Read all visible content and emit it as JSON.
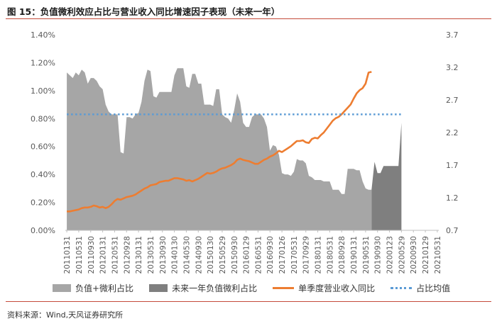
{
  "figure_title": "图 15：负值微利效应占比与营业收入同比增速因子表现（未来一年）",
  "source": "资料来源：Wind,天风证券研究所",
  "colors": {
    "area_past": "#a6a6a6",
    "area_future": "#7f7f7f",
    "line": "#ed7d31",
    "mean": "#5b9bd5",
    "axis": "#bfbfbf",
    "text": "#595959"
  },
  "chart_data": {
    "type": "area",
    "title": "",
    "y_left": {
      "min": 0,
      "max": 0.014,
      "ticks": [
        "0.00%",
        "0.20%",
        "0.40%",
        "0.60%",
        "0.80%",
        "1.00%",
        "1.20%",
        "1.40%"
      ]
    },
    "y_right": {
      "min": 0.7,
      "max": 3.7,
      "ticks": [
        "0.7",
        "1.2",
        "1.7",
        "2.2",
        "2.7",
        "3.2",
        "3.7"
      ]
    },
    "x_labels": [
      "20110131",
      "20110531",
      "20110930",
      "20120131",
      "20120531",
      "20120928",
      "20130131",
      "20130531",
      "20130930",
      "20140130",
      "20140530",
      "20140930",
      "20150130",
      "20150529",
      "20150930",
      "20160129",
      "20160531",
      "20160930",
      "20170126",
      "20170531",
      "20170929",
      "20180131",
      "20180531",
      "20180928",
      "20190131",
      "20190531",
      "20190930",
      "20200123",
      "20200529",
      "20200930",
      "20210129",
      "20210531"
    ],
    "months": 125,
    "future_start_index": 112,
    "mean_value": 0.0083,
    "legend": [
      "负值+微利占比",
      "未来一年负值微利占比",
      "单季度营业收入同比",
      "占比均值"
    ],
    "series": [
      {
        "name": "负值+微利占比",
        "axis": "left",
        "points": [
          [
            0,
            0.0113
          ],
          [
            1,
            0.0111
          ],
          [
            2,
            0.0109
          ],
          [
            3,
            0.0113
          ],
          [
            4,
            0.0111
          ],
          [
            5,
            0.0115
          ],
          [
            6,
            0.0113
          ],
          [
            7,
            0.0105
          ],
          [
            8,
            0.0109
          ],
          [
            9,
            0.0109
          ],
          [
            10,
            0.0107
          ],
          [
            11,
            0.0103
          ],
          [
            12,
            0.0101
          ],
          [
            13,
            0.009
          ],
          [
            14,
            0.0085
          ],
          [
            15,
            0.0083
          ],
          [
            16,
            0.0083
          ],
          [
            17,
            0.0083
          ],
          [
            18,
            0.0056
          ],
          [
            19,
            0.0055
          ],
          [
            20,
            0.0081
          ],
          [
            21,
            0.0081
          ],
          [
            22,
            0.008
          ],
          [
            23,
            0.0083
          ],
          [
            24,
            0.0084
          ],
          [
            25,
            0.0092
          ],
          [
            26,
            0.0107
          ],
          [
            27,
            0.0115
          ],
          [
            28,
            0.0114
          ],
          [
            29,
            0.0096
          ],
          [
            30,
            0.0095
          ],
          [
            31,
            0.0099
          ],
          [
            32,
            0.0099
          ],
          [
            33,
            0.0099
          ],
          [
            34,
            0.0099
          ],
          [
            35,
            0.0099
          ],
          [
            36,
            0.0111
          ],
          [
            37,
            0.0116
          ],
          [
            38,
            0.0116
          ],
          [
            39,
            0.0116
          ],
          [
            40,
            0.0103
          ],
          [
            41,
            0.0102
          ],
          [
            42,
            0.0112
          ],
          [
            43,
            0.0112
          ],
          [
            44,
            0.0105
          ],
          [
            45,
            0.0105
          ],
          [
            46,
            0.009
          ],
          [
            47,
            0.009
          ],
          [
            48,
            0.009
          ],
          [
            49,
            0.0089
          ],
          [
            50,
            0.0101
          ],
          [
            51,
            0.0101
          ],
          [
            52,
            0.0083
          ],
          [
            53,
            0.0081
          ],
          [
            54,
            0.008
          ],
          [
            55,
            0.0077
          ],
          [
            56,
            0.0086
          ],
          [
            57,
            0.0098
          ],
          [
            58,
            0.0092
          ],
          [
            59,
            0.0077
          ],
          [
            60,
            0.0074
          ],
          [
            61,
            0.0074
          ],
          [
            62,
            0.0081
          ],
          [
            63,
            0.0083
          ],
          [
            64,
            0.0083
          ],
          [
            65,
            0.0083
          ],
          [
            66,
            0.008
          ],
          [
            67,
            0.0074
          ],
          [
            68,
            0.0057
          ],
          [
            69,
            0.0061
          ],
          [
            70,
            0.006
          ],
          [
            71,
            0.0054
          ],
          [
            72,
            0.0041
          ],
          [
            73,
            0.004
          ],
          [
            74,
            0.004
          ],
          [
            75,
            0.0039
          ],
          [
            76,
            0.0042
          ],
          [
            77,
            0.0051
          ],
          [
            78,
            0.005
          ],
          [
            79,
            0.005
          ],
          [
            80,
            0.0048
          ],
          [
            81,
            0.0039
          ],
          [
            82,
            0.0038
          ],
          [
            83,
            0.0036
          ],
          [
            84,
            0.0036
          ],
          [
            85,
            0.0036
          ],
          [
            86,
            0.0035
          ],
          [
            87,
            0.0035
          ],
          [
            88,
            0.0035
          ],
          [
            89,
            0.0029
          ],
          [
            90,
            0.0029
          ],
          [
            91,
            0.0029
          ],
          [
            92,
            0.0026
          ],
          [
            93,
            0.0026
          ],
          [
            94,
            0.0044
          ],
          [
            95,
            0.0044
          ],
          [
            96,
            0.0044
          ],
          [
            97,
            0.0043
          ],
          [
            98,
            0.0043
          ],
          [
            99,
            0.0035
          ],
          [
            100,
            0.003
          ],
          [
            101,
            0.0029
          ],
          [
            102,
            0.0029
          ]
        ]
      },
      {
        "name": "未来一年负值微利占比",
        "axis": "left",
        "points": [
          [
            102,
            0.0029
          ],
          [
            103,
            0.0049
          ],
          [
            104,
            0.0041
          ],
          [
            105,
            0.0041
          ],
          [
            106,
            0.0046
          ],
          [
            107,
            0.0046
          ],
          [
            108,
            0.0046
          ],
          [
            109,
            0.0046
          ],
          [
            110,
            0.0046
          ],
          [
            111,
            0.0046
          ],
          [
            112,
            0.0077
          ]
        ]
      },
      {
        "name": "单季度营业收入同比",
        "axis": "right",
        "points": [
          [
            0,
            0.99
          ],
          [
            1,
            0.99
          ],
          [
            2,
            1.0
          ],
          [
            3,
            1.01
          ],
          [
            4,
            1.02
          ],
          [
            5,
            1.04
          ],
          [
            6,
            1.05
          ],
          [
            7,
            1.05
          ],
          [
            8,
            1.06
          ],
          [
            9,
            1.08
          ],
          [
            10,
            1.07
          ],
          [
            11,
            1.05
          ],
          [
            12,
            1.06
          ],
          [
            13,
            1.04
          ],
          [
            14,
            1.06
          ],
          [
            15,
            1.1
          ],
          [
            16,
            1.15
          ],
          [
            17,
            1.18
          ],
          [
            18,
            1.17
          ],
          [
            19,
            1.19
          ],
          [
            20,
            1.21
          ],
          [
            21,
            1.22
          ],
          [
            22,
            1.23
          ],
          [
            23,
            1.25
          ],
          [
            24,
            1.28
          ],
          [
            25,
            1.31
          ],
          [
            26,
            1.34
          ],
          [
            27,
            1.36
          ],
          [
            28,
            1.39
          ],
          [
            29,
            1.4
          ],
          [
            30,
            1.41
          ],
          [
            31,
            1.44
          ],
          [
            32,
            1.45
          ],
          [
            33,
            1.46
          ],
          [
            34,
            1.46
          ],
          [
            35,
            1.48
          ],
          [
            36,
            1.5
          ],
          [
            37,
            1.5
          ],
          [
            38,
            1.49
          ],
          [
            39,
            1.48
          ],
          [
            40,
            1.46
          ],
          [
            41,
            1.47
          ],
          [
            42,
            1.45
          ],
          [
            43,
            1.47
          ],
          [
            44,
            1.49
          ],
          [
            45,
            1.52
          ],
          [
            46,
            1.55
          ],
          [
            47,
            1.58
          ],
          [
            48,
            1.57
          ],
          [
            49,
            1.58
          ],
          [
            50,
            1.6
          ],
          [
            51,
            1.63
          ],
          [
            52,
            1.65
          ],
          [
            53,
            1.66
          ],
          [
            54,
            1.68
          ],
          [
            55,
            1.7
          ],
          [
            56,
            1.73
          ],
          [
            57,
            1.78
          ],
          [
            58,
            1.8
          ],
          [
            59,
            1.78
          ],
          [
            60,
            1.77
          ],
          [
            61,
            1.76
          ],
          [
            62,
            1.74
          ],
          [
            63,
            1.72
          ],
          [
            64,
            1.72
          ],
          [
            65,
            1.75
          ],
          [
            66,
            1.78
          ],
          [
            67,
            1.8
          ],
          [
            68,
            1.83
          ],
          [
            69,
            1.85
          ],
          [
            70,
            1.88
          ],
          [
            71,
            1.92
          ],
          [
            72,
            1.9
          ],
          [
            73,
            1.93
          ],
          [
            74,
            1.96
          ],
          [
            75,
            1.99
          ],
          [
            76,
            2.03
          ],
          [
            77,
            2.07
          ],
          [
            78,
            2.07
          ],
          [
            79,
            2.08
          ],
          [
            80,
            2.05
          ],
          [
            81,
            2.04
          ],
          [
            82,
            2.1
          ],
          [
            83,
            2.12
          ],
          [
            84,
            2.11
          ],
          [
            85,
            2.16
          ],
          [
            86,
            2.2
          ],
          [
            87,
            2.26
          ],
          [
            88,
            2.32
          ],
          [
            89,
            2.38
          ],
          [
            90,
            2.42
          ],
          [
            91,
            2.44
          ],
          [
            92,
            2.48
          ],
          [
            93,
            2.53
          ],
          [
            94,
            2.58
          ],
          [
            95,
            2.63
          ],
          [
            96,
            2.72
          ],
          [
            97,
            2.8
          ],
          [
            98,
            2.85
          ],
          [
            99,
            2.88
          ],
          [
            100,
            2.95
          ],
          [
            101,
            3.12
          ],
          [
            102,
            3.13
          ]
        ]
      },
      {
        "name": "占比均值",
        "axis": "left",
        "points": [
          [
            0,
            0.0083
          ],
          [
            112,
            0.0083
          ]
        ]
      }
    ]
  }
}
